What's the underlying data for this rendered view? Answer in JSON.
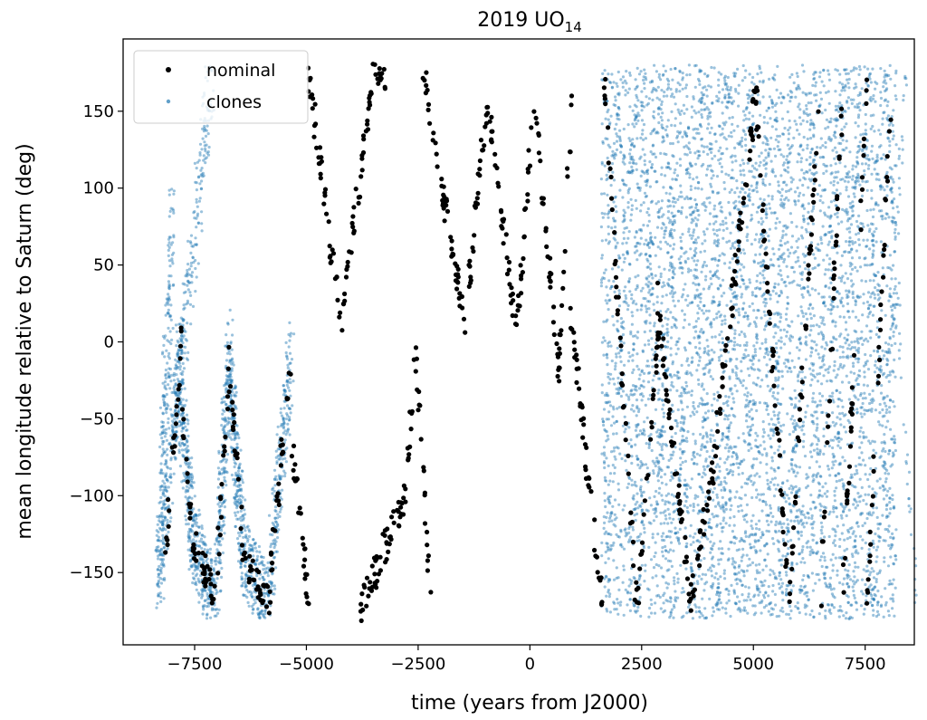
{
  "chart_data": {
    "type": "scatter",
    "title": {
      "main": "2019 UO",
      "sub": "14"
    },
    "xlabel": "time (years from J2000)",
    "ylabel": "mean longitude relative to Saturn (deg)",
    "xlim": [
      -9100,
      8600
    ],
    "ylim": [
      -197,
      197
    ],
    "xticks": [
      -7500,
      -5000,
      -2500,
      0,
      2500,
      5000,
      7500
    ],
    "xtick_labels": [
      "−7500",
      "−5000",
      "−2500",
      "0",
      "2500",
      "5000",
      "7500"
    ],
    "yticks": [
      150,
      100,
      50,
      0,
      -50,
      -100,
      -150
    ],
    "ytick_labels": [
      "150",
      "100",
      "50",
      "0",
      "−50",
      "−100",
      "−150"
    ],
    "grid": false,
    "legend": {
      "position": "top-left",
      "entries": [
        "nominal",
        "clones"
      ]
    },
    "series": [
      {
        "name": "nominal",
        "color": "#000000",
        "marker_size": 2.6,
        "description_segments": [
          {
            "x": [
              -8200,
              -7800
            ],
            "y": [
              -160,
              0
            ]
          },
          {
            "x": [
              -7800,
              -7500
            ],
            "y": [
              -40,
              -140
            ]
          },
          {
            "x": [
              -7500,
              -7000
            ],
            "y": [
              -130,
              -170
            ]
          },
          {
            "x": [
              -7000,
              -6700
            ],
            "y": [
              -150,
              0
            ]
          },
          {
            "x": [
              -6700,
              -6400
            ],
            "y": [
              -30,
              -140
            ]
          },
          {
            "x": [
              -6400,
              -5800
            ],
            "y": [
              -140,
              -170
            ]
          },
          {
            "x": [
              -5800,
              -5350
            ],
            "y": [
              -150,
              -10
            ]
          },
          {
            "x": [
              -5350,
              -4900
            ],
            "y": [
              -60,
              -180
            ]
          },
          {
            "x": [
              -4950,
              -4200
            ],
            "y": [
              175,
              5
            ]
          },
          {
            "x": [
              -4200,
              -3500
            ],
            "y": [
              20,
              175
            ]
          },
          {
            "x": [
              -3500,
              -3200
            ],
            "y": [
              178,
              175
            ]
          },
          {
            "x": [
              -3800,
              -2800
            ],
            "y": [
              -175,
              -100
            ]
          },
          {
            "x": [
              -2800,
              -2550
            ],
            "y": [
              -100,
              -8
            ]
          },
          {
            "x": [
              -2550,
              -2200
            ],
            "y": [
              -10,
              -175
            ]
          },
          {
            "x": [
              -2400,
              -1450
            ],
            "y": [
              178,
              10
            ]
          },
          {
            "x": [
              -1450,
              -950
            ],
            "y": [
              10,
              160
            ]
          },
          {
            "x": [
              -950,
              -300
            ],
            "y": [
              160,
              5
            ]
          },
          {
            "x": [
              -300,
              100
            ],
            "y": [
              5,
              160
            ]
          },
          {
            "x": [
              100,
              650
            ],
            "y": [
              160,
              -20
            ]
          },
          {
            "x": [
              650,
              950
            ],
            "y": [
              -20,
              170
            ]
          },
          {
            "x": [
              900,
              1650
            ],
            "y": [
              20,
              -180
            ]
          },
          {
            "x": [
              1650,
              2400
            ],
            "y": [
              175,
              -180
            ]
          },
          {
            "x": [
              2400,
              2950
            ],
            "y": [
              -170,
              30
            ]
          },
          {
            "x": [
              2850,
              3600
            ],
            "y": [
              30,
              -170
            ]
          },
          {
            "x": [
              3600,
              4100
            ],
            "y": [
              -170,
              -80
            ]
          },
          {
            "x": [
              4100,
              5100
            ],
            "y": [
              -80,
              175
            ]
          },
          {
            "x": [
              5000,
              5800
            ],
            "y": [
              175,
              -170
            ]
          },
          {
            "x": [
              5800,
              6500
            ],
            "y": [
              -170,
              170
            ]
          },
          {
            "x": [
              6500,
              7000
            ],
            "y": [
              -170,
              165
            ]
          },
          {
            "x": [
              7000,
              7550
            ],
            "y": [
              -170,
              175
            ]
          },
          {
            "x": [
              7550,
              8100
            ],
            "y": [
              -170,
              175
            ]
          }
        ]
      },
      {
        "name": "clones",
        "color": "#1f77b4",
        "opacity": 0.45,
        "marker_size": 1.6
      }
    ]
  }
}
